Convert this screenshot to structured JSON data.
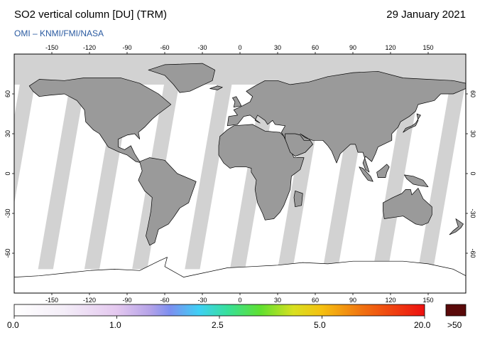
{
  "header": {
    "title": "SO2 vertical column [DU] (TRM)",
    "date": "29 January 2021",
    "credit": "OMI  –  KNMI/FMI/NASA"
  },
  "map": {
    "projection": "equirectangular",
    "lon_ticks": [
      "-150",
      "-120",
      "-90",
      "-60",
      "-30",
      "0",
      "30",
      "60",
      "90",
      "120",
      "150"
    ],
    "lat_ticks": [
      "60",
      "30",
      "0",
      "-30",
      "-60"
    ],
    "colors": {
      "land": "#9a9a9a",
      "no_data": "#d2d2d2",
      "swath": "#ffffff",
      "coast": "#000000"
    }
  },
  "colorbar": {
    "labels": [
      "0.0",
      "1.0",
      "2.5",
      "5.0",
      "20.0"
    ],
    "overflow_label": ">50",
    "overflow_color": "#5a0a0a"
  }
}
